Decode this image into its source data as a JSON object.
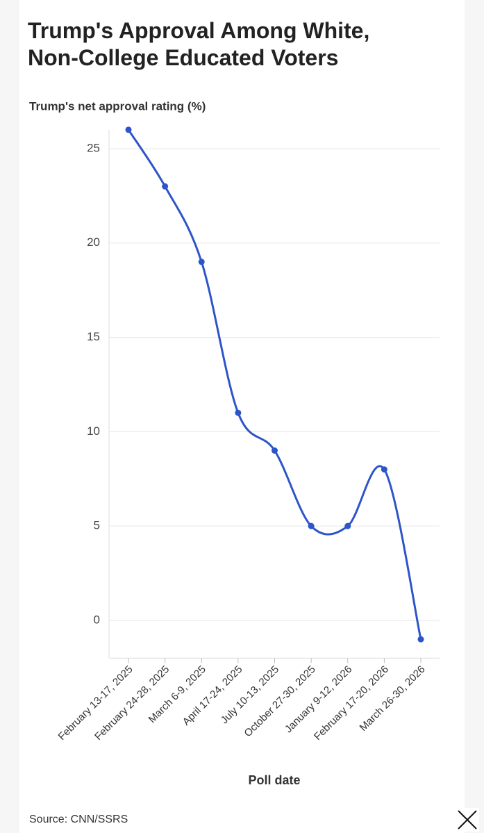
{
  "chart_data": {
    "type": "line",
    "title": "Trump's Approval Among White, Non-College Educated Voters",
    "y_label": "Trump's net approval rating (%)",
    "x_label": "Poll date",
    "source": "Source: CNN/SSRS",
    "categories": [
      "February 13-17, 2025",
      "February 24-28, 2025",
      "March 6-9, 2025",
      "April 17-24, 2025",
      "July 10-13, 2025",
      "October 27-30, 2025",
      "January 9-12, 2026",
      "February 17-20, 2026",
      "March 26-30, 2026"
    ],
    "values": [
      26,
      23,
      19,
      11,
      9,
      5,
      5,
      8,
      -1
    ],
    "color": "#2d55c9",
    "ylim": [
      -2,
      26
    ],
    "yticks": [
      0,
      5,
      10,
      15,
      20,
      25
    ],
    "grid": true
  }
}
